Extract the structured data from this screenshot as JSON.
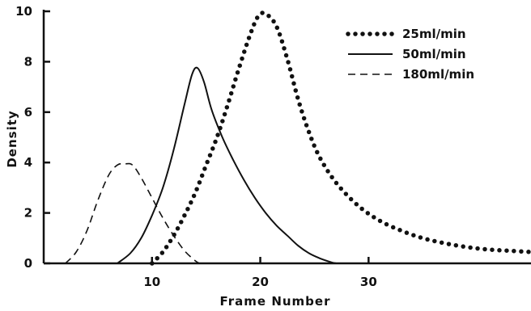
{
  "chart_data": {
    "type": "line",
    "title": "",
    "xlabel": "Frame Number",
    "ylabel": "Density",
    "xlim": [
      0,
      45
    ],
    "ylim": [
      0,
      10
    ],
    "x_ticks": [
      10,
      20,
      30
    ],
    "y_ticks": [
      0,
      2,
      4,
      6,
      8,
      10
    ],
    "grid": false,
    "legend_position": "top-right",
    "series": [
      {
        "name": "25ml/min",
        "style": "dotted",
        "color": "#111111",
        "points": [
          [
            10,
            0
          ],
          [
            11,
            0.45
          ],
          [
            12,
            1.1
          ],
          [
            13,
            1.9
          ],
          [
            14,
            2.8
          ],
          [
            15,
            3.9
          ],
          [
            16,
            5.0
          ],
          [
            17,
            6.3
          ],
          [
            18,
            7.7
          ],
          [
            19,
            9.0
          ],
          [
            19.8,
            9.8
          ],
          [
            20.5,
            9.9
          ],
          [
            21.5,
            9.4
          ],
          [
            22.5,
            8.1
          ],
          [
            23.5,
            6.5
          ],
          [
            24.5,
            5.2
          ],
          [
            25.5,
            4.2
          ],
          [
            27,
            3.2
          ],
          [
            29,
            2.3
          ],
          [
            31,
            1.7
          ],
          [
            33,
            1.3
          ],
          [
            35,
            1.0
          ],
          [
            37,
            0.8
          ],
          [
            39,
            0.65
          ],
          [
            41,
            0.55
          ],
          [
            43,
            0.5
          ],
          [
            45,
            0.45
          ]
        ]
      },
      {
        "name": "50ml/min",
        "style": "solid",
        "color": "#111111",
        "points": [
          [
            6.8,
            0
          ],
          [
            8,
            0.4
          ],
          [
            9,
            1.0
          ],
          [
            10,
            1.9
          ],
          [
            11,
            3.0
          ],
          [
            12,
            4.5
          ],
          [
            13,
            6.3
          ],
          [
            13.7,
            7.5
          ],
          [
            14.2,
            7.75
          ],
          [
            14.8,
            7.2
          ],
          [
            15.5,
            6.1
          ],
          [
            16.5,
            5.0
          ],
          [
            17.5,
            4.1
          ],
          [
            18.5,
            3.3
          ],
          [
            19.5,
            2.6
          ],
          [
            20.5,
            2.0
          ],
          [
            21.5,
            1.5
          ],
          [
            22.5,
            1.1
          ],
          [
            23.5,
            0.7
          ],
          [
            24.5,
            0.4
          ],
          [
            25.5,
            0.2
          ],
          [
            26.5,
            0.05
          ],
          [
            27,
            0
          ]
        ]
      },
      {
        "name": "180ml/min",
        "style": "dashed",
        "color": "#111111",
        "points": [
          [
            2,
            0
          ],
          [
            3,
            0.45
          ],
          [
            4,
            1.3
          ],
          [
            5,
            2.5
          ],
          [
            6,
            3.5
          ],
          [
            6.8,
            3.9
          ],
          [
            7.5,
            3.95
          ],
          [
            8.2,
            3.9
          ],
          [
            9,
            3.4
          ],
          [
            10,
            2.6
          ],
          [
            11,
            1.8
          ],
          [
            12,
            1.1
          ],
          [
            13,
            0.5
          ],
          [
            14,
            0.1
          ],
          [
            14.4,
            0
          ]
        ]
      }
    ]
  }
}
